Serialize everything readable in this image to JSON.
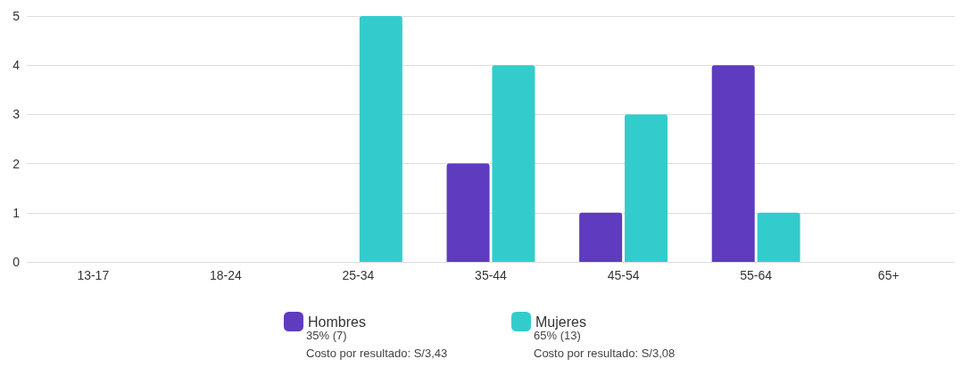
{
  "chart_data": {
    "type": "bar",
    "categories": [
      "13-17",
      "18-24",
      "25-34",
      "35-44",
      "45-54",
      "55-64",
      "65+"
    ],
    "series": [
      {
        "name": "Hombres",
        "color": "#5e3bbf",
        "values": [
          0,
          0,
          0,
          2,
          1,
          4,
          0
        ]
      },
      {
        "name": "Mujeres",
        "color": "#33cccc",
        "values": [
          0,
          0,
          5,
          4,
          3,
          1,
          0
        ]
      }
    ],
    "ylim": [
      0,
      5
    ],
    "yticks": [
      0,
      1,
      2,
      3,
      4,
      5
    ],
    "grid": "y",
    "legend": "bottom",
    "annotations": [
      "35% (7)",
      "Costo por resultado: S/3,43",
      "65% (13)",
      "Costo por resultado: S/3,08"
    ]
  }
}
